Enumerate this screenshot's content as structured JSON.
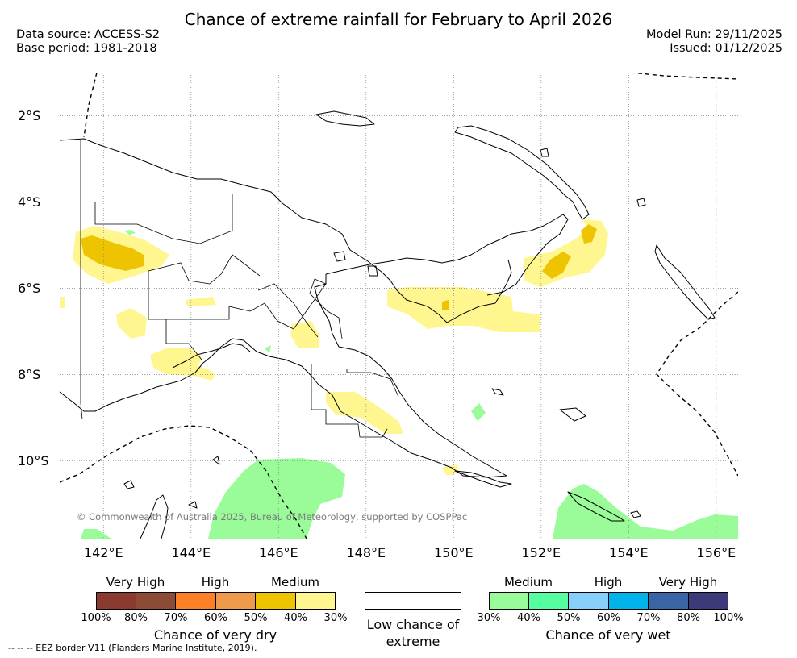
{
  "title": "Chance of extreme rainfall for February to April 2026",
  "meta": {
    "data_source": "Data source: ACCESS-S2",
    "base_period": "Base period: 1981-2018",
    "model_run": "Model Run: 29/11/2025",
    "issued": "Issued: 01/12/2025"
  },
  "map": {
    "extent": {
      "lon": [
        141.0,
        156.5
      ],
      "lat": [
        -11.8,
        -1.0
      ]
    },
    "lat_ticks": [
      {
        "value": -2,
        "label": "2°S"
      },
      {
        "value": -4,
        "label": "4°S"
      },
      {
        "value": -6,
        "label": "6°S"
      },
      {
        "value": -8,
        "label": "8°S"
      },
      {
        "value": -10,
        "label": "10°S"
      }
    ],
    "lon_ticks": [
      {
        "value": 142,
        "label": "142°E"
      },
      {
        "value": 144,
        "label": "144°E"
      },
      {
        "value": 146,
        "label": "146°E"
      },
      {
        "value": 148,
        "label": "148°E"
      },
      {
        "value": 150,
        "label": "150°E"
      },
      {
        "value": 152,
        "label": "152°E"
      },
      {
        "value": 154,
        "label": "154°E"
      },
      {
        "value": 156,
        "label": "156°E"
      }
    ],
    "grid": true,
    "copyright": "© Commonwealth of Australia 2025, Bureau of Meteorology, supported by COSPPac"
  },
  "legend": {
    "dry": {
      "categories": [
        "Very High",
        "High",
        "Medium"
      ],
      "colors": [
        "#8b3a2f",
        "#8c4b35",
        "#ff7f27",
        "#ee9b4a",
        "#eec400",
        "#fff68f"
      ],
      "labels": [
        "100%",
        "80%",
        "70%",
        "60%",
        "50%",
        "40%",
        "30%"
      ],
      "caption": "Chance of very dry"
    },
    "neutral": {
      "caption": "Low chance of extreme",
      "color": "#ffffff"
    },
    "wet": {
      "categories": [
        "Medium",
        "High",
        "Very High"
      ],
      "colors": [
        "#99fc99",
        "#55ffa0",
        "#87cefa",
        "#00b4eb",
        "#3a64a3",
        "#3c3a78"
      ],
      "labels": [
        "30%",
        "40%",
        "50%",
        "60%",
        "70%",
        "80%",
        "100%"
      ],
      "caption": "Chance of very wet"
    }
  },
  "footer": "--  --  -- EEZ border V11 (Flanders Marine Institute, 2019).",
  "colors": {
    "coast": "#000000",
    "eez": "#000000",
    "grid": "#808080"
  }
}
